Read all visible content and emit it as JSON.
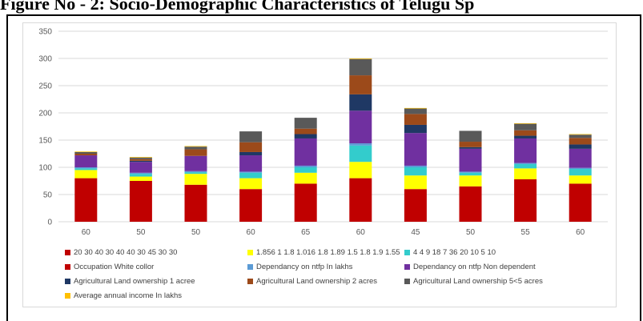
{
  "caption": "Figure No - 2: Socio-Demographic Characteristics of Telugu Sp",
  "chart_data": {
    "type": "bar",
    "stacked": true,
    "ylim": [
      0,
      350
    ],
    "yticks": [
      0,
      50,
      100,
      150,
      200,
      250,
      300,
      350
    ],
    "grid": true,
    "legend_position": "bottom",
    "categories": [
      "60",
      "50",
      "50",
      "60",
      "65",
      "60",
      "45",
      "50",
      "55",
      "60"
    ],
    "series": [
      {
        "name": "20 30 40 30 40 40 30 45 30 30",
        "color": "#c00000",
        "values": [
          80,
          75,
          68,
          60,
          70,
          80,
          60,
          65,
          78,
          70
        ]
      },
      {
        "name": "1.856 1 1.8 1.016 1.8 1.89 1.5 1.8 1.9 1.55",
        "color": "#ffff00",
        "values": [
          15,
          8,
          20,
          20,
          20,
          30,
          25,
          20,
          20,
          15
        ]
      },
      {
        "name": "4 4 9 18 7 36 20 10 5 10",
        "color": "#33cccc",
        "values": [
          3,
          5,
          3,
          10,
          10,
          30,
          15,
          5,
          8,
          12
        ]
      },
      {
        "name": "Occupation White collor",
        "color": "#c00000",
        "values": [
          0,
          0,
          0,
          0,
          0,
          0,
          0,
          0,
          0,
          0
        ]
      },
      {
        "name": "Dependancy on ntfp In lakhs",
        "color": "#5b9bd5",
        "values": [
          2,
          2,
          2,
          2,
          3,
          4,
          3,
          2,
          2,
          2
        ]
      },
      {
        "name": "Dependancy on ntfp Non dependent",
        "color": "#7030a0",
        "values": [
          22,
          20,
          28,
          30,
          50,
          60,
          60,
          42,
          45,
          35
        ]
      },
      {
        "name": "Agricultural Land ownership 1 acree",
        "color": "#1f3864",
        "values": [
          0,
          2,
          0,
          6,
          8,
          30,
          15,
          3,
          5,
          8
        ]
      },
      {
        "name": "Agricultural Land ownership 2 acres",
        "color": "#9c4a1a",
        "values": [
          3,
          3,
          12,
          18,
          10,
          35,
          20,
          10,
          10,
          12
        ]
      },
      {
        "name": "Agricultural Land ownership 5<5 acres",
        "color": "#595959",
        "values": [
          3,
          3,
          5,
          20,
          20,
          30,
          10,
          20,
          12,
          6
        ]
      },
      {
        "name": "Average annual income In lakhs",
        "color": "#ffc000",
        "values": [
          1,
          1,
          1,
          0,
          0,
          1,
          1,
          0,
          1,
          1
        ]
      }
    ]
  }
}
